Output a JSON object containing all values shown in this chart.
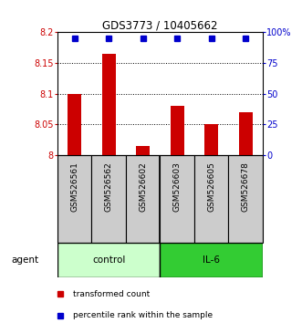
{
  "title": "GDS3773 / 10405662",
  "samples": [
    "GSM526561",
    "GSM526562",
    "GSM526602",
    "GSM526603",
    "GSM526605",
    "GSM526678"
  ],
  "bar_values": [
    8.1,
    8.165,
    8.015,
    8.08,
    8.05,
    8.07
  ],
  "percentile_values": [
    95,
    95,
    95,
    95,
    95,
    95
  ],
  "ylim_left": [
    8.0,
    8.2
  ],
  "ylim_right": [
    0,
    100
  ],
  "yticks_left": [
    8.0,
    8.05,
    8.1,
    8.15,
    8.2
  ],
  "ytick_labels_left": [
    "8",
    "8.05",
    "8.1",
    "8.15",
    "8.2"
  ],
  "yticks_right": [
    0,
    25,
    50,
    75,
    100
  ],
  "ytick_labels_right": [
    "0",
    "25",
    "50",
    "75",
    "100%"
  ],
  "groups": [
    {
      "label": "control",
      "color": "#ccffcc",
      "count": 3
    },
    {
      "label": "IL-6",
      "color": "#33cc33",
      "count": 3
    }
  ],
  "bar_color": "#cc0000",
  "dot_color": "#0000cc",
  "background_color": "#ffffff",
  "sample_box_color": "#cccccc",
  "legend_items": [
    {
      "label": "transformed count",
      "color": "#cc0000"
    },
    {
      "label": "percentile rank within the sample",
      "color": "#0000cc"
    }
  ]
}
